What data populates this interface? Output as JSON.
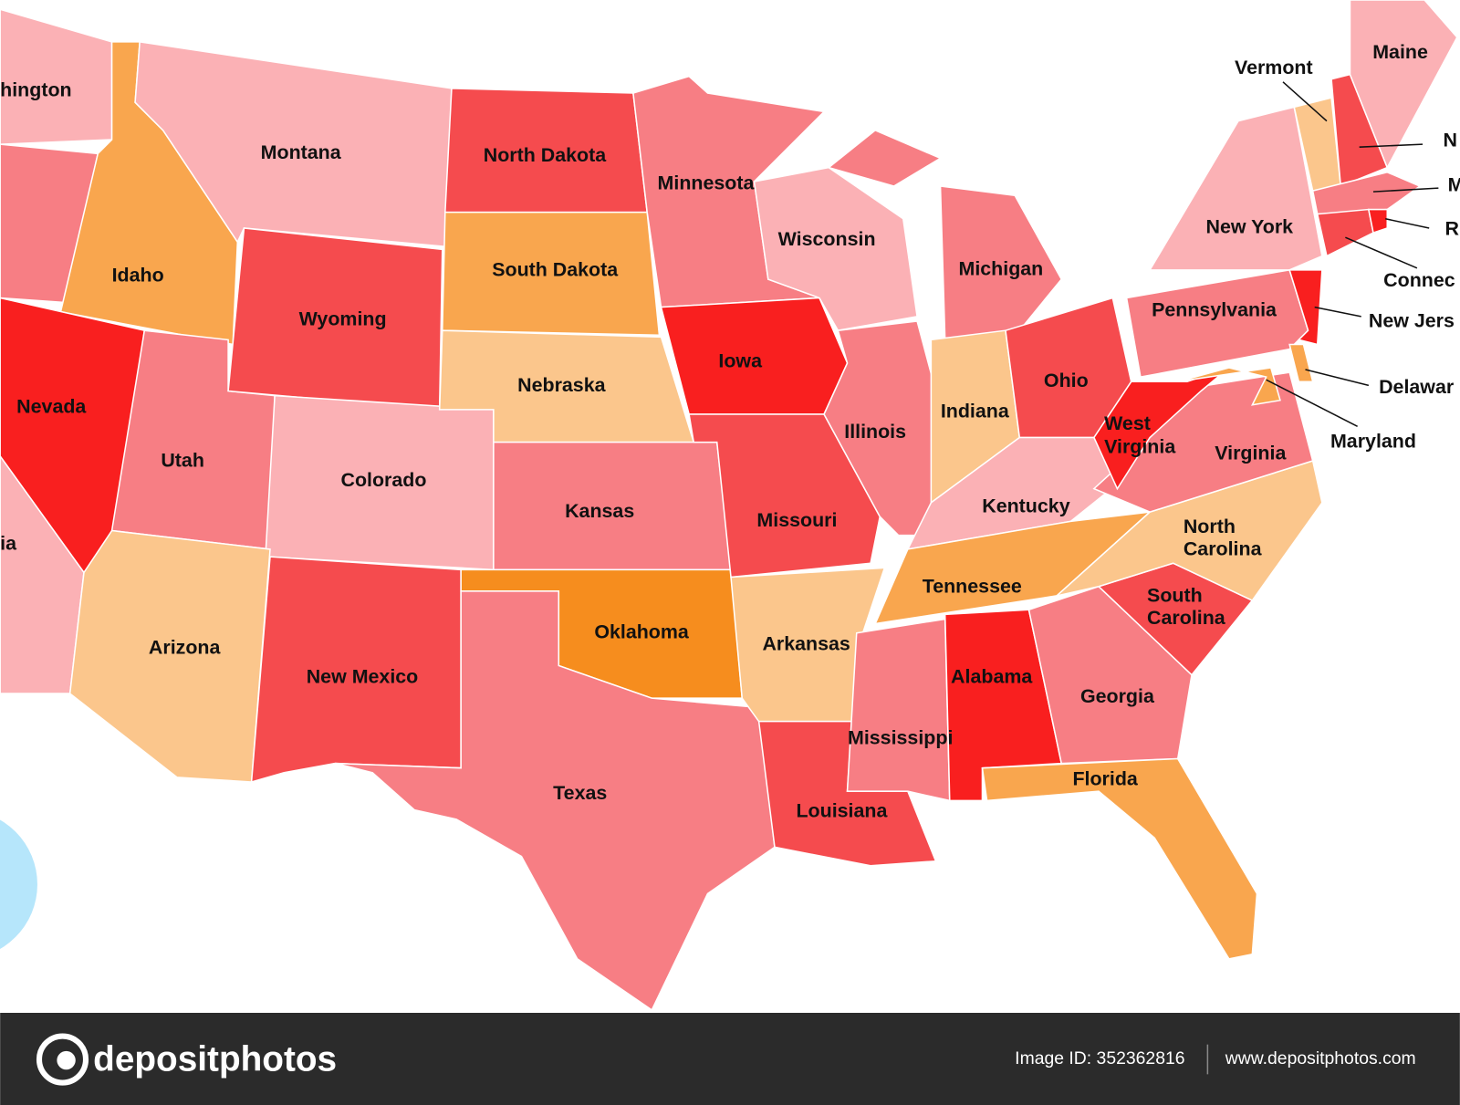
{
  "states": [
    {
      "lines": [
        "hington"
      ]
    },
    {
      "lines": [
        "Montana"
      ]
    },
    {
      "lines": [
        "North Dakota"
      ]
    },
    {
      "lines": [
        "Minnesota"
      ]
    },
    {
      "lines": [
        "Wisconsin"
      ]
    },
    {
      "lines": [
        "Michigan"
      ]
    },
    {
      "lines": [
        "Idaho"
      ]
    },
    {
      "lines": [
        "South Dakota"
      ]
    },
    {
      "lines": [
        "Wyoming"
      ]
    },
    {
      "lines": [
        "Iowa"
      ]
    },
    {
      "lines": [
        "Nebraska"
      ]
    },
    {
      "lines": [
        "Nevada"
      ]
    },
    {
      "lines": [
        "Utah"
      ]
    },
    {
      "lines": [
        "Colorado"
      ]
    },
    {
      "lines": [
        "Kansas"
      ]
    },
    {
      "lines": [
        "Missouri"
      ]
    },
    {
      "lines": [
        "Illinois"
      ]
    },
    {
      "lines": [
        "Indiana"
      ]
    },
    {
      "lines": [
        "Ohio"
      ]
    },
    {
      "lines": [
        "ia"
      ]
    },
    {
      "lines": [
        "Arizona"
      ]
    },
    {
      "lines": [
        "New Mexico"
      ]
    },
    {
      "lines": [
        "Oklahoma"
      ]
    },
    {
      "lines": [
        "Arkansas"
      ]
    },
    {
      "lines": [
        "Texas"
      ]
    },
    {
      "lines": [
        "Louisiana"
      ]
    },
    {
      "lines": [
        "Mississippi"
      ]
    },
    {
      "lines": [
        "Alabama"
      ]
    },
    {
      "lines": [
        "Georgia"
      ]
    },
    {
      "lines": [
        "Florida"
      ]
    },
    {
      "lines": [
        "Tennessee"
      ]
    },
    {
      "lines": [
        "Kentucky"
      ]
    },
    {
      "lines": [
        "West",
        "Virginia"
      ]
    },
    {
      "lines": [
        "Virginia"
      ]
    },
    {
      "lines": [
        "North",
        "Carolina"
      ]
    },
    {
      "lines": [
        "South",
        "Carolina"
      ]
    },
    {
      "lines": [
        "Pennsylvania"
      ]
    },
    {
      "lines": [
        "New York"
      ]
    },
    {
      "lines": [
        "Vermont"
      ]
    },
    {
      "lines": [
        "Maine"
      ]
    },
    {
      "lines": [
        "N"
      ]
    },
    {
      "lines": [
        "M"
      ]
    },
    {
      "lines": [
        "R"
      ]
    },
    {
      "lines": [
        "Connec"
      ]
    },
    {
      "lines": [
        "New Jers"
      ]
    },
    {
      "lines": [
        "Delawar"
      ]
    },
    {
      "lines": [
        "Maryland"
      ]
    }
  ],
  "footer": {
    "brand": "depositphotos",
    "image_id": "Image ID: 352362816",
    "url": "www.depositphotos.com"
  }
}
